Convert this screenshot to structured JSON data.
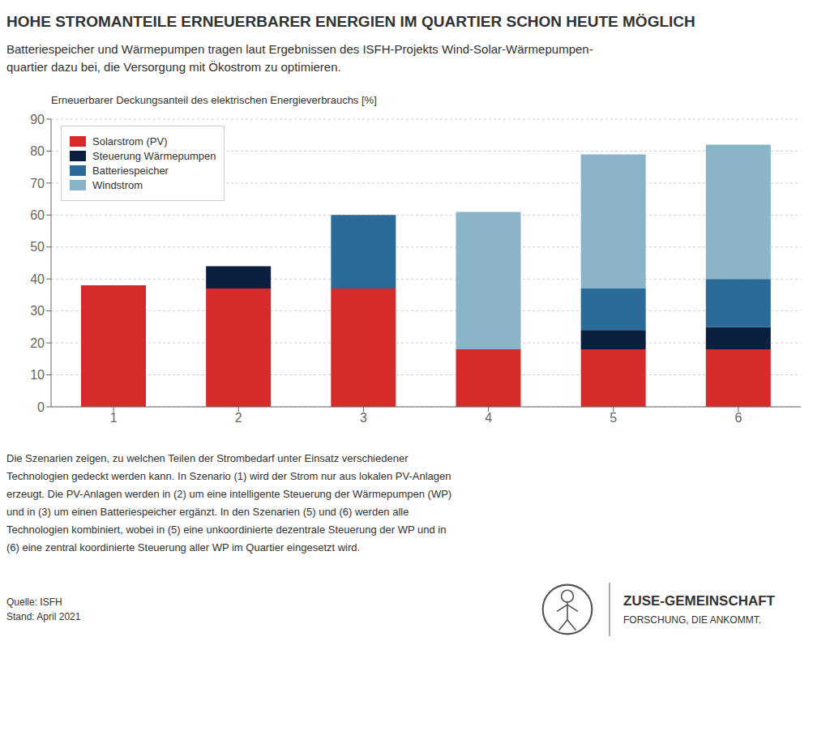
{
  "chart_data": {
    "type": "bar",
    "title": "HOHE STROMANTEILE ERNEUERBARER ENERGIEN IM QUARTIER SCHON HEUTE MÖGLICH",
    "subtitle": [
      "Batteriespeicher und Wärmepumpen tragen laut Ergebnissen des ISFH-Projekts Wind-Solar-Wärmepumpen-",
      "quartier dazu bei, die Versorgung mit Ökostrom zu optimieren."
    ],
    "ylabel": "Erneuerbarer Deckungsanteil des elektrischen Energieverbrauchs [%]",
    "categories": [
      "1",
      "2",
      "3",
      "4",
      "5",
      "6"
    ],
    "series": [
      {
        "name": "Solarstrom (PV)",
        "color": "#d72b2b",
        "values": [
          38,
          37,
          37,
          18,
          18,
          18
        ]
      },
      {
        "name": "Steuerung Wärmepumpen",
        "color": "#0c1f3e",
        "values": [
          0,
          7,
          0,
          0,
          6,
          7
        ]
      },
      {
        "name": "Batteriespeicher",
        "color": "#2a6b9a",
        "values": [
          0,
          0,
          23,
          0,
          13,
          15
        ]
      },
      {
        "name": "Windstrom",
        "color": "#8ab4c8",
        "values": [
          0,
          0,
          0,
          43,
          42,
          42
        ]
      }
    ],
    "stacked": true,
    "ylim": [
      0,
      90
    ],
    "yticks": [
      0,
      10,
      20,
      30,
      40,
      50,
      60,
      70,
      80,
      90
    ],
    "grid": true,
    "legend": "upper left",
    "annotations": [
      "Die Szenarien zeigen, zu welchen Teilen der Strombedarf unter Einsatz verschiedener\nTechnologien gedeckt werden kann. In Szenario (1) wird der Strom nur aus lokalen PV-Anlagen\nerzeugt. Die PV-Anlagen werden in (2) um eine intelligente Steuerung der Wärmepumpen (WP)\nund in (3) um einen Batteriespeicher ergänzt. In den Szenarien (5) und (6) werden alle\nTechnologien kombiniert, wobei in (5) eine unkoordinierte dezentrale Steuerung der WP und in\n(6) eine zentral koordinierte Steuerung aller WP im Quartier eingesetzt wird.",
      "Quelle: ISFH\nStand: April 2021",
      "ZUSE-GEMEINSCHAFT",
      "FORSCHUNG, DIE ANKOMMT."
    ]
  }
}
